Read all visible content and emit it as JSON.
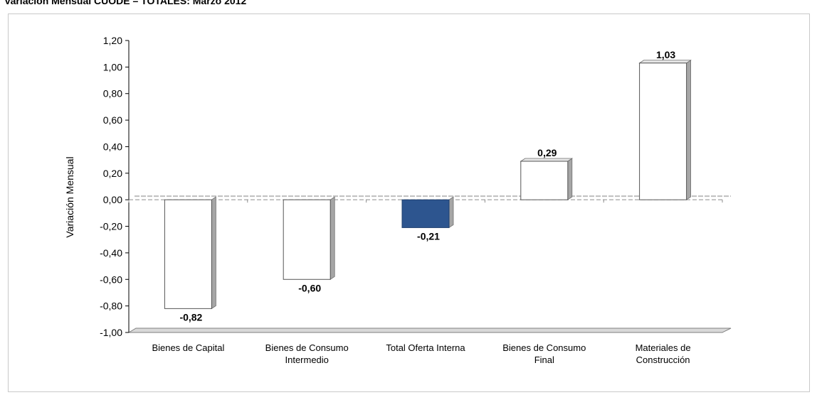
{
  "title": "Variación Mensual CUODE – TOTALES: Marzo 2012",
  "chart_data": {
    "type": "bar",
    "title": "Variación Mensual CUODE – TOTALES: Marzo 2012",
    "xlabel": "",
    "ylabel": "Variación Mensual",
    "ylim": [
      -1.0,
      1.2
    ],
    "yticks": [
      "1,20",
      "1,00",
      "0,80",
      "0,60",
      "0,40",
      "0,20",
      "0,00",
      "-0,20",
      "-0,40",
      "-0,60",
      "-0,80",
      "-1,00"
    ],
    "ytick_values": [
      1.2,
      1.0,
      0.8,
      0.6,
      0.4,
      0.2,
      0.0,
      -0.2,
      -0.4,
      -0.6,
      -0.8,
      -1.0
    ],
    "categories": [
      [
        "Bienes de Capital"
      ],
      [
        "Bienes de Consumo",
        "Intermedio"
      ],
      [
        "Total Oferta Interna"
      ],
      [
        "Bienes de Consumo",
        "Final"
      ],
      [
        "Materiales de",
        "Construcción"
      ]
    ],
    "values": [
      -0.82,
      -0.6,
      -0.21,
      0.29,
      1.03
    ],
    "value_labels": [
      "-0,82",
      "-0,60",
      "-0,21",
      "0,29",
      "1,03"
    ],
    "highlight_index": 2,
    "colors": {
      "bar": "#ffffff",
      "highlight": "#2d558f",
      "side": "#a6a6a6",
      "zero_line": "#bfbfbf"
    },
    "grid": false,
    "legend": "none"
  }
}
